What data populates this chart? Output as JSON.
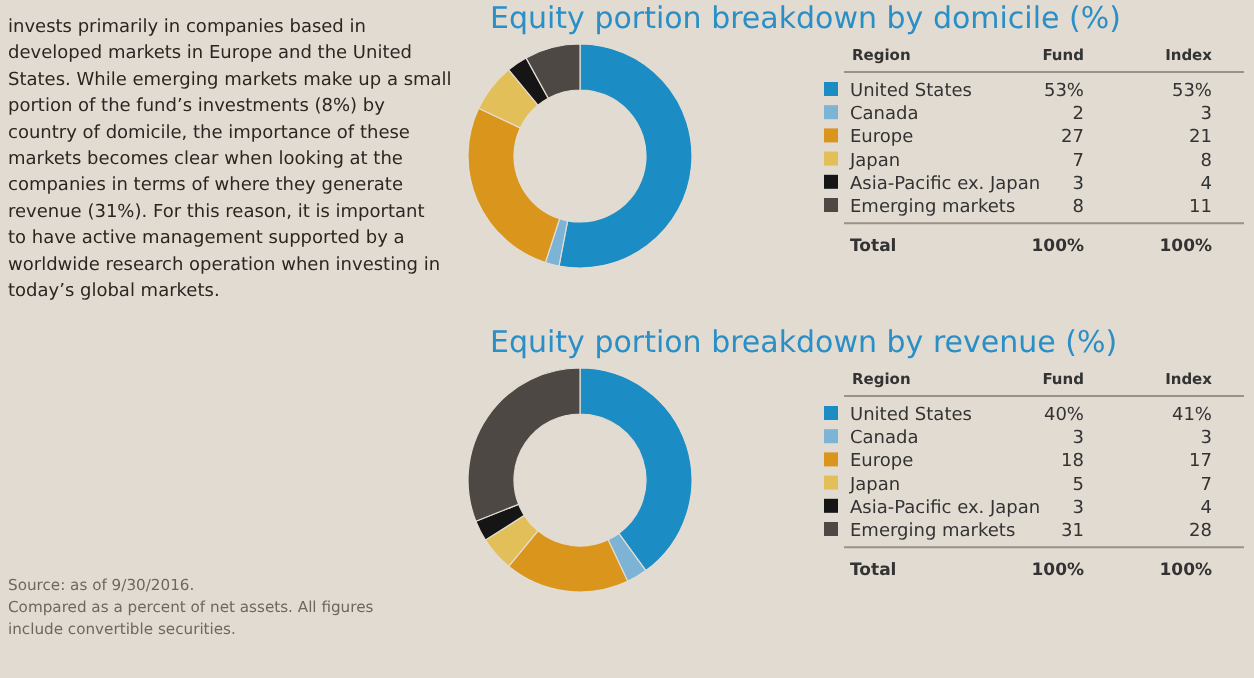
{
  "chart_data": [
    {
      "type": "other",
      "annotations": [
        "invests primarily in companies based in developed markets in Europe and the United States. While emerging markets make up a small portion of the fund’s investments (8%) by country of domicile, the importance of these markets becomes clear when looking at the companies in terms of where they generate revenue (31%). For this reason, it is important to have active management supported by a worldwide research operation when investing in today’s global markets.",
        "Source: as of 9/30/2016.",
        "Compared as a percent of net assets. All figures include convertible securities."
      ]
    },
    {
      "type": "donut",
      "title": "Equity portion breakdown by domicile (%)",
      "legend": "right",
      "legend_title": "Region",
      "categories": [
        "United States",
        "Canada",
        "Europe",
        "Japan",
        "Asia-Pacific ex. Japan",
        "Emerging markets"
      ],
      "colors": [
        "#1b8cc4",
        "#7db4d6",
        "#d9951c",
        "#e3bf5a",
        "#151515",
        "#4d4843"
      ],
      "series": [
        {
          "name": "Fund",
          "values": [
            53,
            2,
            27,
            7,
            3,
            8
          ],
          "value_labels": [
            "53%",
            "2",
            "27",
            "7",
            "3",
            "8"
          ]
        }
      ],
      "totals": [
        "100%"
      ],
      "annotations": [
        "Total"
      ]
    },
    {
      "type": "other",
      "series": [
        {
          "name": "Index",
          "values": [
            53,
            3,
            21,
            8,
            4,
            11
          ],
          "value_labels": [
            "53%",
            "3",
            "21",
            "8",
            "4",
            "11"
          ]
        }
      ],
      "totals": [
        "100%"
      ]
    },
    {
      "type": "donut",
      "title": "Equity portion breakdown by revenue (%)",
      "legend": "right",
      "legend_title": "Region",
      "categories": [
        "United States",
        "Canada",
        "Europe",
        "Japan",
        "Asia-Pacific ex. Japan",
        "Emerging markets"
      ],
      "colors": [
        "#1b8cc4",
        "#7db4d6",
        "#d9951c",
        "#e3bf5a",
        "#151515",
        "#4d4843"
      ],
      "series": [
        {
          "name": "Fund",
          "values": [
            40,
            3,
            18,
            5,
            3,
            31
          ],
          "value_labels": [
            "40%",
            "3",
            "18",
            "5",
            "3",
            "31"
          ]
        }
      ],
      "totals": [
        "100%"
      ],
      "annotations": [
        "Total"
      ]
    },
    {
      "type": "other",
      "series": [
        {
          "name": "Index",
          "values": [
            41,
            3,
            17,
            7,
            4,
            28
          ],
          "value_labels": [
            "41%",
            "3",
            "17",
            "7",
            "4",
            "28"
          ]
        }
      ],
      "totals": [
        "100%"
      ]
    }
  ]
}
